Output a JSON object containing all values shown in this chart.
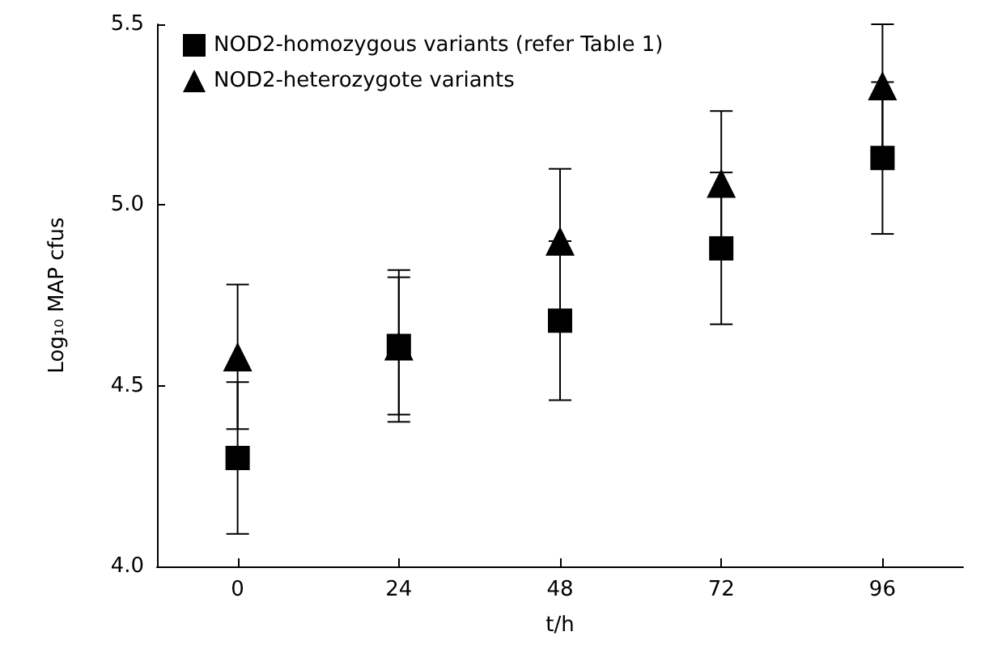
{
  "chart_data": {
    "type": "scatter",
    "xlabel": "t/h",
    "ylabel": "Log₁₀ MAP cfus",
    "categories": [
      "0",
      "24",
      "48",
      "72",
      "96"
    ],
    "ylim": [
      4.0,
      5.5
    ],
    "yticks": [
      {
        "value": 4.0,
        "label": "4.0"
      },
      {
        "value": 4.5,
        "label": "4.5"
      },
      {
        "value": 5.0,
        "label": "5.0"
      },
      {
        "value": 5.5,
        "label": "5.5"
      }
    ],
    "grid": false,
    "legend": "top left",
    "series": [
      {
        "name": "NOD2-homozygous variants (refer Table 1)",
        "color": "#000000",
        "marker": "square",
        "values": [
          4.3,
          4.61,
          4.68,
          4.88,
          5.13
        ],
        "errors": [
          0.21,
          0.21,
          0.22,
          0.21,
          0.21
        ]
      },
      {
        "name": "NOD2-heterozygote variants",
        "color": "#000000",
        "marker": "triangle",
        "values": [
          4.58,
          4.61,
          4.9,
          5.06,
          5.33
        ],
        "errors": [
          0.2,
          0.19,
          0.2,
          0.2,
          0.17
        ]
      }
    ]
  }
}
